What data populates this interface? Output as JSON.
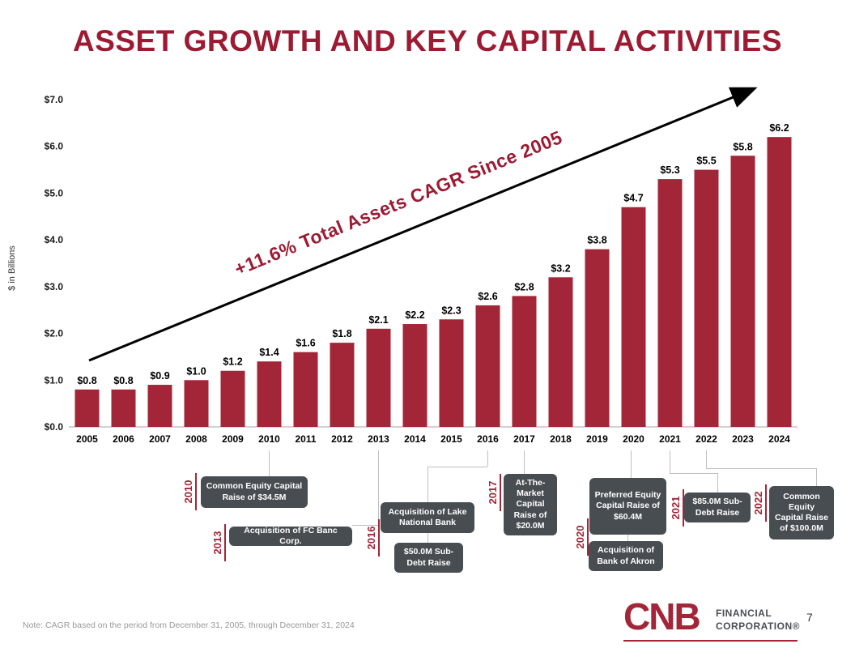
{
  "title": "ASSET GROWTH AND KEY CAPITAL ACTIVITIES",
  "chart_data": {
    "type": "bar",
    "title": "Asset Growth and Key Capital Activities",
    "xlabel": "",
    "ylabel": "$ in Billions",
    "categories": [
      "2005",
      "2006",
      "2007",
      "2008",
      "2009",
      "2010",
      "2011",
      "2012",
      "2013",
      "2014",
      "2015",
      "2016",
      "2017",
      "2018",
      "2019",
      "2020",
      "2021",
      "2022",
      "2023",
      "2024"
    ],
    "values": [
      0.8,
      0.8,
      0.9,
      1.0,
      1.2,
      1.4,
      1.6,
      1.8,
      2.1,
      2.2,
      2.3,
      2.6,
      2.8,
      3.2,
      3.8,
      4.7,
      5.3,
      5.5,
      5.8,
      6.2
    ],
    "bar_labels": [
      "$0.8",
      "$0.8",
      "$0.9",
      "$1.0",
      "$1.2",
      "$1.4",
      "$1.6",
      "$1.8",
      "$2.1",
      "$2.2",
      "$2.3",
      "$2.6",
      "$2.8",
      "$3.2",
      "$3.8",
      "$4.7",
      "$5.3",
      "$5.5",
      "$5.8",
      "$6.2"
    ],
    "y_ticks": [
      "$0.0",
      "$1.0",
      "$2.0",
      "$3.0",
      "$4.0",
      "$5.0",
      "$6.0",
      "$7.0"
    ],
    "ylim": [
      0,
      7
    ],
    "grid": false,
    "legend": false,
    "bar_color": "#A32638",
    "annotation": "+11.6% Total Assets CAGR Since 2005"
  },
  "annotations": [
    {
      "year": "2010",
      "boxes": [
        "Common Equity Capital Raise of $34.5M"
      ]
    },
    {
      "year": "2013",
      "boxes": [
        "Acquisition of FC Banc Corp."
      ]
    },
    {
      "year": "2016",
      "boxes": [
        "Acquisition of Lake National Bank",
        "$50.0M Sub-Debt Raise"
      ]
    },
    {
      "year": "2017",
      "boxes": [
        "At-The-Market Capital Raise of $20.0M"
      ]
    },
    {
      "year": "2020",
      "boxes": [
        "Preferred Equity Capital Raise of $60.4M",
        "Acquisition of Bank of Akron"
      ]
    },
    {
      "year": "2021",
      "boxes": [
        "$85.0M Sub-Debt Raise"
      ]
    },
    {
      "year": "2022",
      "boxes": [
        "Common Equity Capital Raise of $100.0M"
      ]
    }
  ],
  "footer": {
    "note": "Note: CAGR based on the period from December 31, 2005, through December 31, 2024",
    "logo_text": "CNB",
    "logo_sub1": "FINANCIAL",
    "logo_sub2": "CORPORATION®",
    "page_number": "7"
  },
  "colors": {
    "accent": "#9C1B33",
    "bar": "#A32638",
    "callout": "#484D52",
    "connector": "#BFBFBF"
  }
}
